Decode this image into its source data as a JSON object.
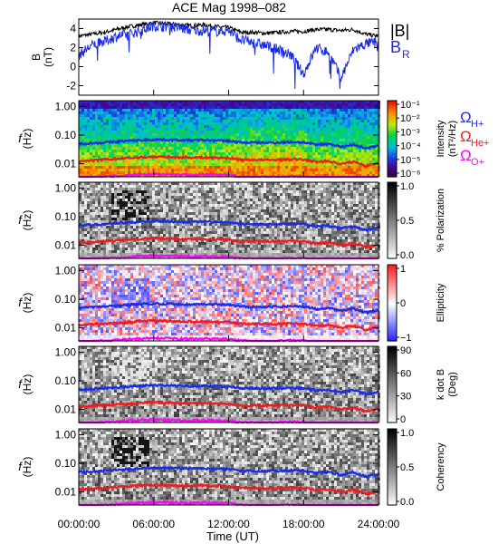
{
  "title": "ACE Mag 1998–082",
  "xaxis": {
    "label": "Time (UT)",
    "ticks": [
      "00:00:00",
      "06:00:00",
      "12:00:00",
      "18:00:00",
      "24:00:00"
    ],
    "range_hours": [
      0,
      24
    ]
  },
  "colors": {
    "b_total": "#000000",
    "b_radial": "#1a2be8",
    "omega_h": "#1a2be8",
    "omega_he": "#ee1c1c",
    "omega_o": "#ff00ff"
  },
  "legends": {
    "b_total": "|B|",
    "b_radial_main": "B",
    "b_radial_sub": "R",
    "omega_h_main": "Ω",
    "omega_h_sub": "H+",
    "omega_he_main": "Ω",
    "omega_he_sub": "He+",
    "omega_o_main": "Ω",
    "omega_o_sub": "O+"
  },
  "chart_data": [
    {
      "type": "line",
      "id": "field",
      "ylabel_line1": "B",
      "ylabel_line2": "(nT)",
      "ylim": [
        -3,
        5
      ],
      "yticks": [
        "4",
        "2",
        "0",
        "-2"
      ],
      "x_hours": [
        0,
        1,
        2,
        3,
        4,
        5,
        6,
        7,
        8,
        9,
        10,
        11,
        12,
        13,
        14,
        15,
        16,
        17,
        18,
        19,
        20,
        21,
        22,
        23,
        24
      ],
      "series": [
        {
          "name": "|B|",
          "values": [
            3.2,
            3.4,
            3.6,
            3.9,
            4.2,
            4.4,
            4.6,
            4.5,
            4.4,
            4.3,
            4.4,
            4.2,
            4.1,
            3.6,
            3.6,
            3.5,
            3.6,
            3.7,
            3.7,
            3.9,
            3.9,
            3.8,
            3.9,
            3.4,
            3.2
          ]
        },
        {
          "name": "B_R",
          "values": [
            1.2,
            2.2,
            2.6,
            3.2,
            3.4,
            3.8,
            4.3,
            4.2,
            4.1,
            3.8,
            3.8,
            3.7,
            3.8,
            2.8,
            2.5,
            2.2,
            1.8,
            1.2,
            -0.8,
            2.0,
            1.5,
            -1.2,
            1.8,
            2.4,
            2.6
          ]
        }
      ]
    },
    {
      "type": "heatmap",
      "id": "intensity",
      "ylabel_line1": "f",
      "ylabel_line2": "(Hz)",
      "yticks": [
        "1.00",
        "0.10",
        "0.01"
      ],
      "colorbar_label_line1": "Intensity",
      "colorbar_label_line2": "(nT²/Hz)",
      "colorbar_ticks": [
        "10⁻¹",
        "10⁻²",
        "10⁻³",
        "10⁻⁴",
        "10⁻⁵",
        "10⁻⁶"
      ],
      "colormap": "rainbow"
    },
    {
      "type": "heatmap",
      "id": "polarization",
      "ylabel_line1": "f",
      "ylabel_line2": "(Hz)",
      "yticks": [
        "1.00",
        "0.10",
        "0.01"
      ],
      "colorbar_label_line1": "% Polarization",
      "colorbar_label_line2": "",
      "colorbar_ticks": [
        "1.0",
        "0.5",
        "0.0"
      ],
      "colormap": "gray"
    },
    {
      "type": "heatmap",
      "id": "ellipticity",
      "ylabel_line1": "f",
      "ylabel_line2": "(Hz)",
      "yticks": [
        "1.00",
        "0.10",
        "0.01"
      ],
      "colorbar_label_line1": "Ellipticity",
      "colorbar_label_line2": "",
      "colorbar_ticks": [
        "1",
        "0",
        "−1"
      ],
      "colormap": "bluewhitered"
    },
    {
      "type": "heatmap",
      "id": "kdotb",
      "ylabel_line1": "f",
      "ylabel_line2": "(Hz)",
      "yticks": [
        "1.00",
        "0.10",
        "0.01"
      ],
      "colorbar_label_line1": "k dot B",
      "colorbar_label_line2": "(Deg)",
      "colorbar_ticks": [
        "90",
        "60",
        "30",
        "0"
      ],
      "colormap": "gray"
    },
    {
      "type": "heatmap",
      "id": "coherency",
      "ylabel_line1": "f",
      "ylabel_line2": "(Hz)",
      "yticks": [
        "1.00",
        "0.10",
        "0.01"
      ],
      "colorbar_label_line1": "Coherency",
      "colorbar_label_line2": "",
      "colorbar_ticks": [
        "1.0",
        "0.5",
        "0.0"
      ],
      "colormap": "gray"
    }
  ],
  "gyrofrequencies_hz": {
    "x_hours": [
      0,
      1,
      2,
      3,
      4,
      5,
      6,
      7,
      8,
      9,
      10,
      11,
      12,
      13,
      14,
      15,
      16,
      17,
      18,
      19,
      20,
      21,
      22,
      23,
      24
    ],
    "omega_h": [
      0.05,
      0.052,
      0.055,
      0.059,
      0.063,
      0.067,
      0.07,
      0.069,
      0.067,
      0.066,
      0.067,
      0.065,
      0.063,
      0.055,
      0.055,
      0.054,
      0.055,
      0.057,
      0.056,
      0.046,
      0.05,
      0.039,
      0.047,
      0.034,
      0.042
    ],
    "omega_he": [
      0.0125,
      0.013,
      0.0138,
      0.0148,
      0.0158,
      0.0168,
      0.0175,
      0.0172,
      0.0168,
      0.0165,
      0.0168,
      0.0162,
      0.0158,
      0.0138,
      0.0138,
      0.0135,
      0.0138,
      0.0142,
      0.014,
      0.0115,
      0.0125,
      0.0098,
      0.0118,
      0.0085,
      0.0105
    ],
    "omega_o": [
      0.0032,
      0.0033,
      0.0035,
      0.0037,
      0.004,
      0.0042,
      0.0044,
      0.0043,
      0.0042,
      0.0041,
      0.0042,
      0.0041,
      0.004,
      0.0035,
      0.0035,
      0.0034,
      0.0035,
      0.0036,
      0.0035,
      0.0029,
      0.0031,
      0.0025,
      0.003,
      0.0022,
      0.0026
    ]
  }
}
